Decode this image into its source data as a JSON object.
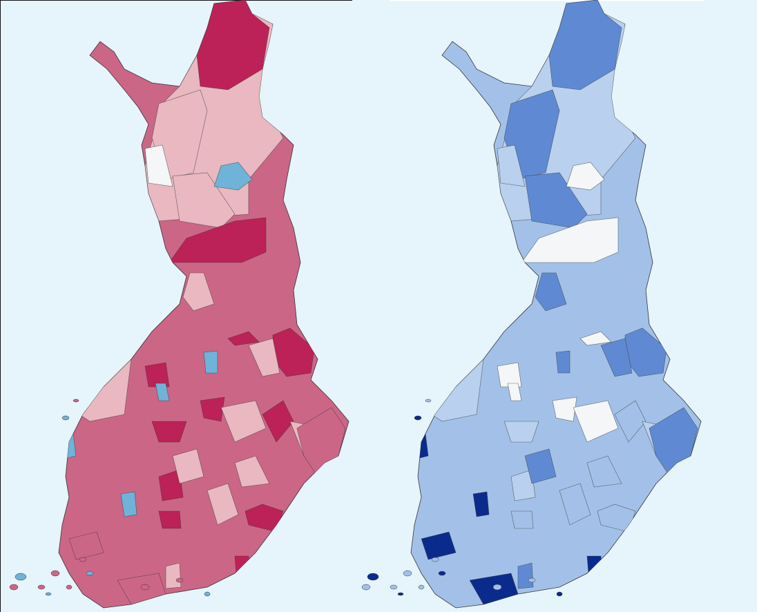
{
  "maps": [
    {
      "base": "#cc6687",
      "light": "#e9b8c1",
      "dark": "#bc2257",
      "accent": "#6fb3d8",
      "white": "#f4f6f8"
    },
    {
      "base": "#a3c1e8",
      "light": "#b9d0ee",
      "dark": "#5f8ad3",
      "accent": "#0b2b8c",
      "white": "#f4f6f8"
    }
  ]
}
